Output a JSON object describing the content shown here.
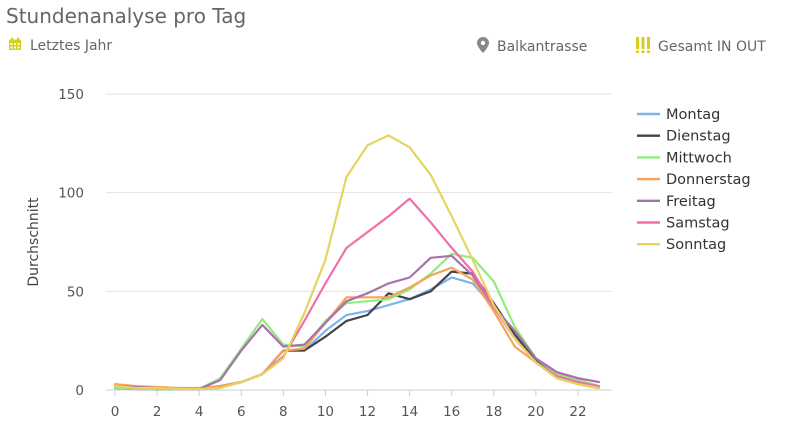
{
  "header": {
    "title": "Stundenanalyse pro Tag",
    "period": "Letztes Jahr",
    "location": "Balkantrasse",
    "direction": "Gesamt IN OUT",
    "accent_color": "#d7cf1c"
  },
  "chart_data": {
    "type": "line",
    "title": "Stundenanalyse pro Tag",
    "xlabel": "",
    "ylabel": "Durchschnitt",
    "x": [
      0,
      1,
      2,
      3,
      4,
      5,
      6,
      7,
      8,
      9,
      10,
      11,
      12,
      13,
      14,
      15,
      16,
      17,
      18,
      19,
      20,
      21,
      22,
      23
    ],
    "xticks": [
      "0",
      "2",
      "4",
      "6",
      "8",
      "10",
      "12",
      "14",
      "16",
      "18",
      "20",
      "22"
    ],
    "yticks": [
      "0",
      "50",
      "100",
      "150"
    ],
    "xlim": [
      0,
      23
    ],
    "ylim": [
      0,
      150
    ],
    "grid": "horizontal",
    "legend_position": "right",
    "series": [
      {
        "name": "Montag",
        "color": "#7cb5ec",
        "values": [
          1,
          0.5,
          0.5,
          0.5,
          0.5,
          2,
          4,
          8,
          20,
          20,
          30,
          38,
          40,
          43,
          46,
          51,
          57,
          54,
          42,
          26,
          14,
          7,
          3,
          1
        ]
      },
      {
        "name": "Dienstag",
        "color": "#434348",
        "values": [
          1,
          0.5,
          0.5,
          0.5,
          0.5,
          2,
          4,
          8,
          20,
          20,
          27,
          35,
          38,
          49,
          46,
          50,
          60,
          59,
          44,
          28,
          15,
          7,
          3,
          1
        ]
      },
      {
        "name": "Mittwoch",
        "color": "#90ed7d",
        "values": [
          1,
          0.5,
          0.5,
          0.5,
          0.5,
          6,
          21,
          36,
          23,
          22,
          35,
          44,
          45,
          46,
          51,
          59,
          69,
          67,
          55,
          32,
          16,
          8,
          5,
          2
        ]
      },
      {
        "name": "Donnerstag",
        "color": "#f7a35c",
        "values": [
          3,
          2,
          1.5,
          1,
          1,
          2,
          4,
          8,
          20,
          21,
          34,
          47,
          47,
          47,
          52,
          58,
          62,
          56,
          40,
          22,
          14,
          6,
          3,
          1
        ]
      },
      {
        "name": "Freitag",
        "color": "#a970b0",
        "values": [
          2,
          1.5,
          1,
          0.5,
          0.5,
          5,
          20,
          33,
          22,
          23,
          34,
          45,
          49,
          54,
          57,
          67,
          68,
          58,
          42,
          30,
          16,
          9,
          6,
          4
        ]
      },
      {
        "name": "Samstag",
        "color": "#f06eaa",
        "values": [
          2,
          1,
          1,
          0.5,
          0.5,
          1,
          4,
          8,
          17,
          35,
          54,
          72,
          80,
          88,
          97,
          85,
          72,
          60,
          42,
          26,
          14,
          7,
          4,
          2
        ]
      },
      {
        "name": "Sonntag",
        "color": "#e3d55d",
        "values": [
          2,
          1,
          1,
          0.5,
          0.5,
          1,
          4,
          8,
          16,
          39,
          66,
          108,
          124,
          129,
          123,
          109,
          88,
          66,
          43,
          26,
          14,
          6,
          3,
          1
        ]
      }
    ]
  }
}
